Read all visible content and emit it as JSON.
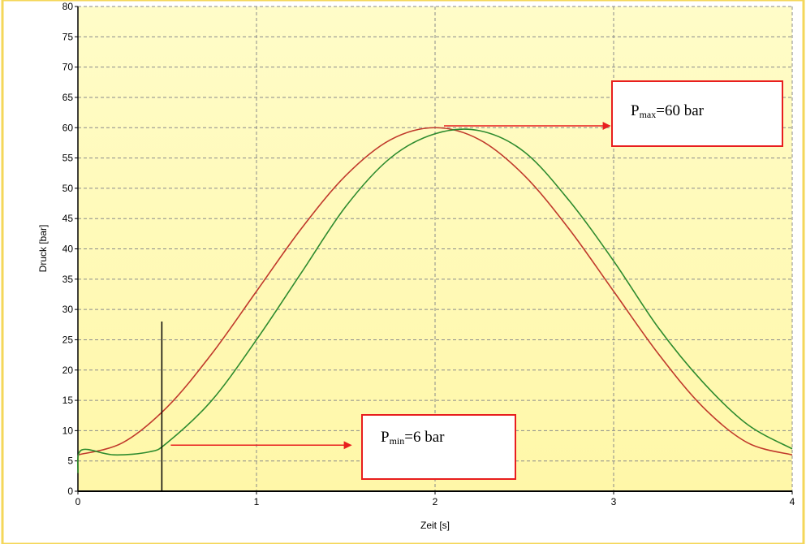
{
  "chart_data": {
    "type": "line",
    "title": "",
    "xlabel": "Zeit [s]",
    "ylabel": "Druck [bar]",
    "xlim": [
      0,
      4
    ],
    "ylim": [
      0,
      80
    ],
    "x_ticks": [
      "0",
      "1",
      "2",
      "3",
      "4"
    ],
    "y_ticks": [
      "0",
      "5",
      "10",
      "15",
      "20",
      "25",
      "30",
      "35",
      "40",
      "45",
      "50",
      "55",
      "60",
      "65",
      "70",
      "75",
      "80"
    ],
    "grid": true,
    "legend": "none",
    "series": [
      {
        "color": "#c0392b",
        "x": [
          0,
          0.25,
          0.5,
          0.75,
          1.0,
          1.25,
          1.5,
          1.75,
          2.0,
          2.25,
          2.5,
          2.75,
          3.0,
          3.25,
          3.5,
          3.75,
          4.0
        ],
        "values": [
          6,
          8.0,
          13.9,
          22.7,
          33.0,
          43.3,
          52.1,
          58.0,
          60,
          58.0,
          52.1,
          43.3,
          33.0,
          22.7,
          13.9,
          8.0,
          6
        ]
      },
      {
        "color": "#2e8b2e",
        "x": [
          0,
          0.02,
          0.2,
          0.4,
          0.5,
          0.75,
          1.0,
          1.25,
          1.5,
          1.75,
          2.0,
          2.25,
          2.5,
          2.75,
          3.0,
          3.25,
          3.5,
          3.75,
          4.0
        ],
        "values": [
          3,
          6.8,
          6.0,
          6.5,
          8.0,
          15.0,
          25.0,
          36.0,
          47.0,
          55.0,
          59.0,
          59.5,
          56.0,
          48.0,
          38.0,
          27.0,
          18.0,
          11.0,
          7.0
        ]
      }
    ],
    "marker_line": {
      "x": 0.47,
      "y_top": 28
    },
    "annotations": {
      "pmax": {
        "main": "P",
        "sub": "max",
        "rest": "=60 bar",
        "arrow_from": [
          2.05,
          60.3
        ],
        "arrow_to": [
          2.98,
          60.3
        ]
      },
      "pmin": {
        "main": "P",
        "sub": "min",
        "rest": "=6 bar",
        "arrow_from": [
          0.52,
          7.6
        ],
        "arrow_to": [
          1.53,
          7.6
        ]
      }
    },
    "colors": {
      "plot_bg_top": "#fffcc8",
      "plot_bg_bottom": "#fff7a8",
      "frame": "#f4d75a",
      "grid": "#8a8a8a",
      "arrow": "#e81e1e"
    }
  }
}
